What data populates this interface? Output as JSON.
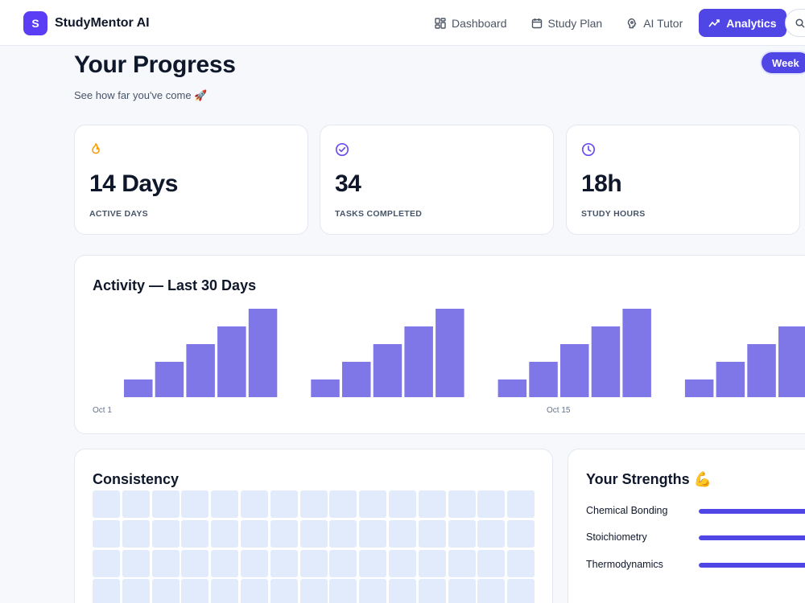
{
  "brand": {
    "logo_letter": "S",
    "name": "StudyMentor AI"
  },
  "nav": {
    "items": [
      {
        "label": "Dashboard",
        "icon": "grid-icon",
        "active": false
      },
      {
        "label": "Study Plan",
        "icon": "calendar-icon",
        "active": false
      },
      {
        "label": "AI Tutor",
        "icon": "brain-icon",
        "active": false
      },
      {
        "label": "Analytics",
        "icon": "trend-icon",
        "active": true
      }
    ],
    "search_icon": "search-icon"
  },
  "header": {
    "title": "Your Progress",
    "subtitle": "See how far you've come 🚀",
    "period": "Week"
  },
  "stats": [
    {
      "icon": "flame-icon",
      "icon_color": "#f59e0b",
      "value": "14 Days",
      "label": "ACTIVE DAYS"
    },
    {
      "icon": "check-circle-icon",
      "icon_color": "#6d4df2",
      "value": "34",
      "label": "TASKS COMPLETED"
    },
    {
      "icon": "clock-icon",
      "icon_color": "#6d4df2",
      "value": "18h",
      "label": "STUDY HOURS"
    }
  ],
  "activity": {
    "title": "Activity — Last 30 Days",
    "x_labels": [
      "Oct 1",
      "Oct 15"
    ]
  },
  "chart_data": {
    "type": "bar",
    "title": "Activity — Last 30 Days",
    "xlabel": "",
    "ylabel": "",
    "values": [
      1,
      2,
      3,
      4,
      5,
      1,
      2,
      3,
      4,
      5,
      1,
      2,
      3,
      4,
      5,
      1,
      2,
      3,
      4
    ],
    "ylim": [
      0,
      5
    ],
    "tick_labels": [
      "Oct 1",
      "Oct 15"
    ],
    "color": "#7f76e8",
    "grid": false
  },
  "consistency": {
    "title": "Consistency",
    "columns": 15,
    "rows": 4,
    "cell_color": "#e2ebfb"
  },
  "strengths": {
    "title": "Your Strengths 💪",
    "items": [
      {
        "name": "Chemical Bonding",
        "level": 0.9
      },
      {
        "name": "Stoichiometry",
        "level": 0.85
      },
      {
        "name": "Thermodynamics",
        "level": 0.8
      }
    ]
  },
  "colors": {
    "accent": "#4f46e5",
    "brand": "#5b3df5",
    "bar": "#7f76e8",
    "page_bg": "#f6f8fc"
  }
}
